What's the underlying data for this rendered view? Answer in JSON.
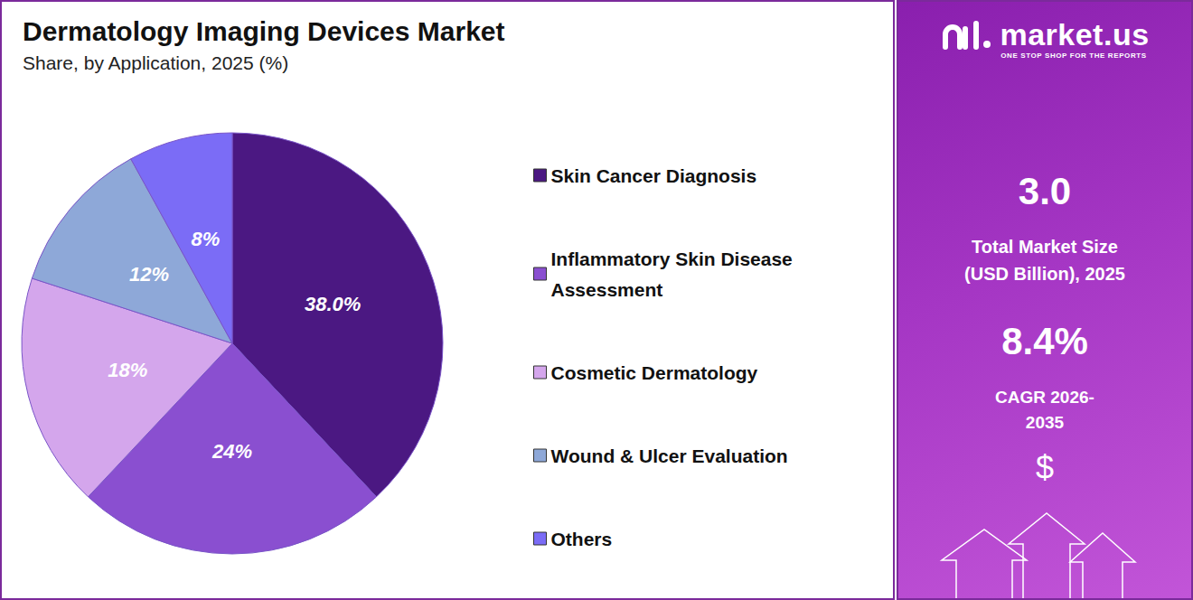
{
  "chart_data": {
    "type": "pie",
    "title": "Dermatology Imaging Devices Market",
    "subtitle": "Share, by Application, 2025 (%)",
    "categories": [
      "Skin Cancer Diagnosis",
      "Inflammatory Skin Disease Assessment",
      "Cosmetic Dermatology",
      "Wound & Ulcer Evaluation",
      "Others"
    ],
    "values": [
      38,
      24,
      18,
      12,
      8
    ],
    "value_labels": [
      "38.0%",
      "24%",
      "18%",
      "12%",
      "8%"
    ],
    "colors": [
      "#4b1882",
      "#8a4fd0",
      "#d4a6ec",
      "#8ea8d8",
      "#7b6cf6"
    ],
    "data_labels": true,
    "legend": "right"
  },
  "side_panel": {
    "brand": "market.us",
    "tagline": "ONE STOP SHOP FOR THE REPORTS",
    "market_size": "3.0",
    "market_size_label": "Total Market Size (USD Billion), 2025",
    "cagr": "8.4%",
    "cagr_label": "CAGR 2026-2035",
    "currency_symbol": "$"
  }
}
